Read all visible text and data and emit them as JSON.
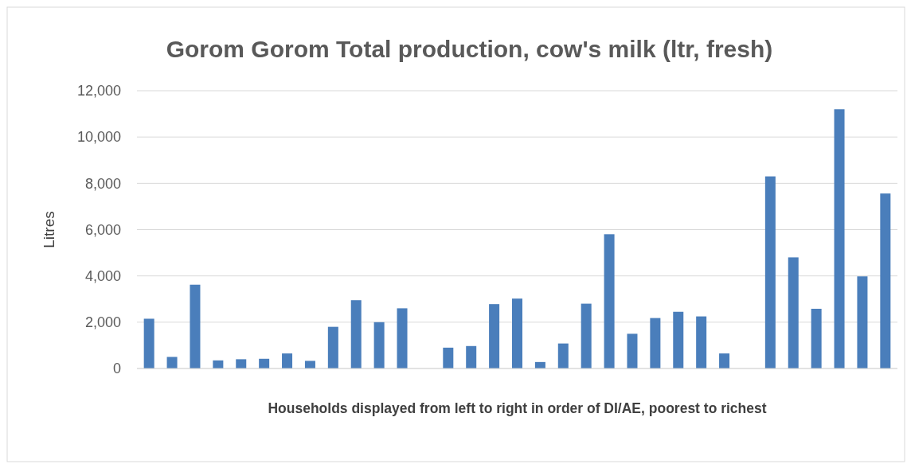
{
  "chart_data": {
    "type": "bar",
    "title": "Gorom Gorom Total production, cow's milk (ltr, fresh)",
    "xlabel": "Households displayed from left to right in order of DI/AE, poorest to richest",
    "ylabel": "Litres",
    "categories": [
      null,
      null,
      null,
      null,
      null,
      null,
      null,
      null,
      null,
      null,
      null,
      null,
      null,
      null,
      null,
      null,
      null,
      null,
      null,
      null,
      null,
      null,
      null,
      null,
      null,
      null,
      null,
      null,
      null,
      null,
      null,
      null,
      null
    ],
    "values": [
      2150,
      500,
      3620,
      350,
      400,
      420,
      650,
      330,
      1800,
      2950,
      2000,
      2600,
      0,
      900,
      970,
      2780,
      3020,
      280,
      1080,
      2800,
      5800,
      1500,
      2180,
      2450,
      2250,
      650,
      0,
      8300,
      4800,
      2580,
      11200,
      3980,
      7560
    ],
    "color": "#4a7ebb",
    "ylim": [
      0,
      12000
    ],
    "yticks": [
      {
        "value": 0,
        "label": "0"
      },
      {
        "value": 2000,
        "label": "2,000"
      },
      {
        "value": 4000,
        "label": "4,000"
      },
      {
        "value": 6000,
        "label": "6,000"
      },
      {
        "value": 8000,
        "label": "8,000"
      },
      {
        "value": 10000,
        "label": "10,000"
      },
      {
        "value": 12000,
        "label": "12,000"
      }
    ],
    "grid": "y"
  }
}
